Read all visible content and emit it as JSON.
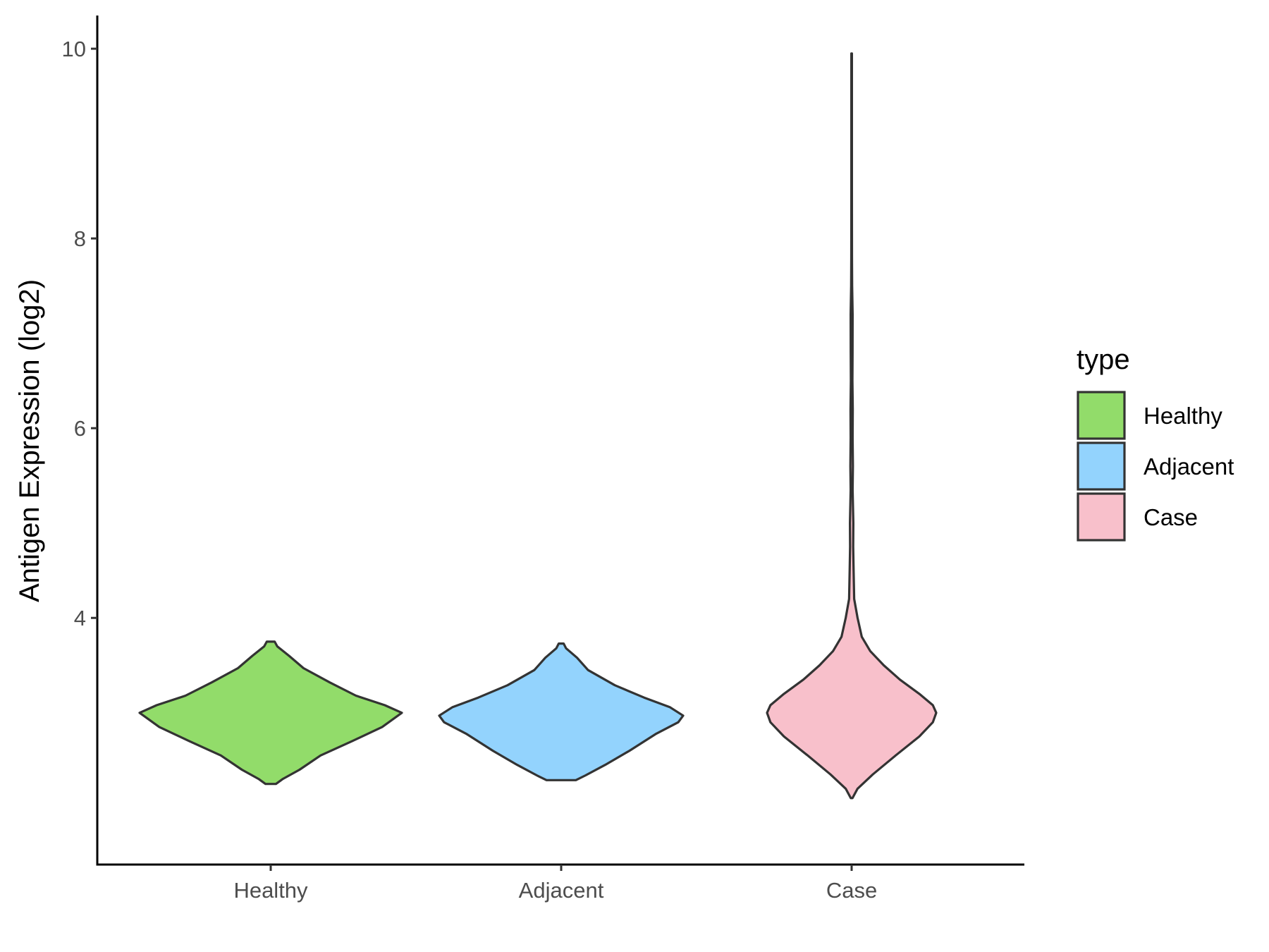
{
  "chart_data": {
    "type": "violin",
    "title": "",
    "xlabel": "",
    "ylabel": "Antigen Expression (log2)",
    "categories": [
      "Healthy",
      "Adjacent",
      "Case"
    ],
    "yticks": [
      4,
      6,
      8,
      10
    ],
    "ylim": [
      1.4,
      10.35
    ],
    "grid": false,
    "legend": {
      "title": "type",
      "position": "right",
      "entries": [
        {
          "label": "Healthy",
          "color": "#92dc6a"
        },
        {
          "label": "Adjacent",
          "color": "#93d3fd"
        },
        {
          "label": "Case",
          "color": "#f8c0cb"
        }
      ]
    },
    "series": [
      {
        "category": "Healthy",
        "color": "#92dc6a",
        "min": 2.25,
        "max": 3.75,
        "median": 3.0,
        "density": [
          [
            2.25,
            0.04
          ],
          [
            2.3,
            0.09
          ],
          [
            2.4,
            0.22
          ],
          [
            2.55,
            0.38
          ],
          [
            2.7,
            0.62
          ],
          [
            2.85,
            0.85
          ],
          [
            3.0,
            1.0
          ],
          [
            3.08,
            0.87
          ],
          [
            3.18,
            0.65
          ],
          [
            3.32,
            0.45
          ],
          [
            3.47,
            0.25
          ],
          [
            3.6,
            0.14
          ],
          [
            3.7,
            0.05
          ],
          [
            3.75,
            0.03
          ]
        ]
      },
      {
        "category": "Adjacent",
        "color": "#93d3fd",
        "min": 2.29,
        "max": 3.73,
        "median": 2.97,
        "density": [
          [
            2.29,
            0.12
          ],
          [
            2.34,
            0.2
          ],
          [
            2.45,
            0.36
          ],
          [
            2.6,
            0.56
          ],
          [
            2.78,
            0.78
          ],
          [
            2.9,
            0.96
          ],
          [
            2.97,
            1.0
          ],
          [
            3.06,
            0.89
          ],
          [
            3.16,
            0.68
          ],
          [
            3.29,
            0.44
          ],
          [
            3.45,
            0.22
          ],
          [
            3.58,
            0.13
          ],
          [
            3.68,
            0.04
          ],
          [
            3.73,
            0.02
          ]
        ]
      },
      {
        "category": "Case",
        "color": "#f8c0cb",
        "min": 2.1,
        "max": 9.95,
        "median": 3.0,
        "density": [
          [
            2.1,
            0.01
          ],
          [
            2.2,
            0.07
          ],
          [
            2.35,
            0.25
          ],
          [
            2.55,
            0.52
          ],
          [
            2.75,
            0.8
          ],
          [
            2.9,
            0.96
          ],
          [
            3.0,
            1.0
          ],
          [
            3.08,
            0.96
          ],
          [
            3.2,
            0.8
          ],
          [
            3.35,
            0.57
          ],
          [
            3.5,
            0.38
          ],
          [
            3.65,
            0.22
          ],
          [
            3.8,
            0.12
          ],
          [
            4.0,
            0.07
          ],
          [
            4.2,
            0.03
          ],
          [
            4.5,
            0.023
          ],
          [
            4.75,
            0.018
          ],
          [
            5.0,
            0.02
          ],
          [
            5.35,
            0.012
          ],
          [
            5.6,
            0.015
          ],
          [
            5.9,
            0.012
          ],
          [
            6.2,
            0.013
          ],
          [
            6.5,
            0.009
          ],
          [
            6.8,
            0.011
          ],
          [
            7.2,
            0.012
          ],
          [
            7.5,
            0.006
          ],
          [
            7.8,
            0.004
          ],
          [
            8.5,
            0.003
          ],
          [
            9.2,
            0.003
          ],
          [
            9.95,
            0.003
          ]
        ]
      }
    ]
  }
}
